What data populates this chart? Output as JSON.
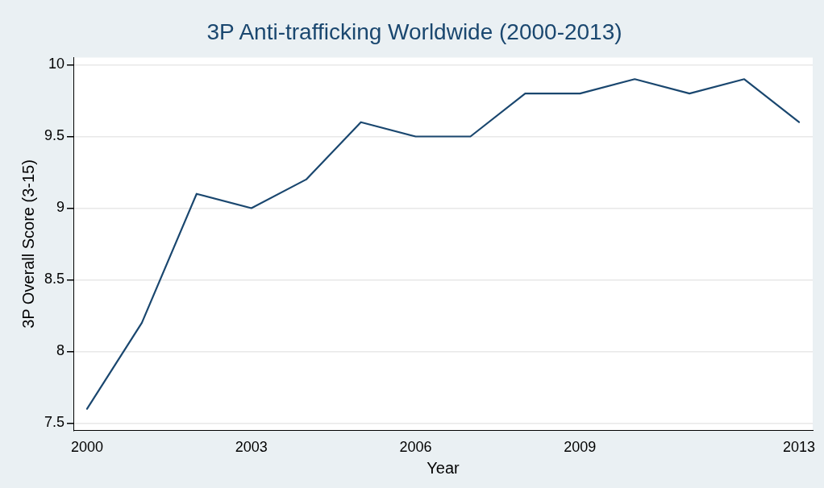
{
  "chart_data": {
    "type": "line",
    "title": "3P Anti-trafficking Worldwide (2000-2013)",
    "xlabel": "Year",
    "ylabel": "3P Overall Score (3-15)",
    "x": [
      2000,
      2001,
      2002,
      2003,
      2004,
      2005,
      2006,
      2007,
      2008,
      2009,
      2010,
      2011,
      2012,
      2013
    ],
    "series": [
      {
        "color": "#1a476f",
        "values": [
          7.6,
          8.2,
          9.1,
          9.0,
          9.2,
          9.6,
          9.5,
          9.5,
          9.8,
          9.8,
          9.9,
          9.8,
          9.9,
          9.6
        ]
      }
    ],
    "xlim": [
      1999.75,
      2013.25
    ],
    "xticks": [
      2000,
      2003,
      2006,
      2009,
      2013
    ],
    "ylim": [
      7.45,
      10.05
    ],
    "yticks": [
      {
        "value": 7.5,
        "label": "7.5"
      },
      {
        "value": 8,
        "label": "8"
      },
      {
        "value": 8.5,
        "label": "8.5"
      },
      {
        "value": 9,
        "label": "9"
      },
      {
        "value": 9.5,
        "label": "9.5"
      },
      {
        "value": 10,
        "label": "10"
      }
    ],
    "grid": "y",
    "legend": false,
    "marker": "none",
    "line_style": "solid"
  }
}
